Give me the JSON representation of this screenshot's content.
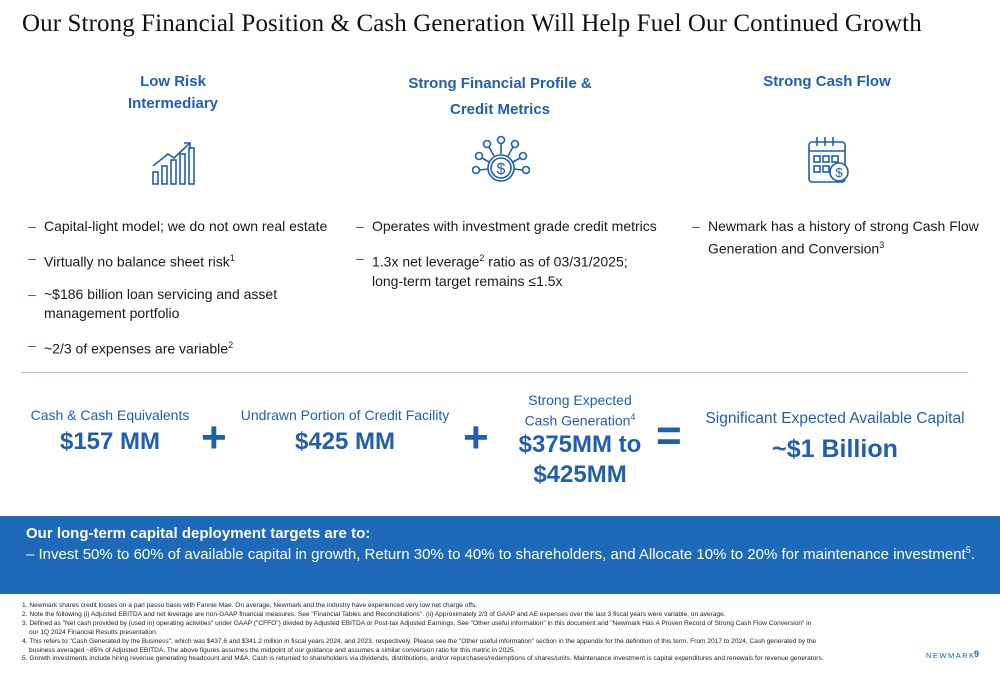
{
  "title": "Our Strong Financial Position & Cash Generation Will Help Fuel Our Continued Growth",
  "columns": [
    {
      "heading_line1": "Low Risk",
      "heading_line2": "Intermediary",
      "icon": "bar-chart-growth-icon",
      "bullets": [
        {
          "text": "Capital-light model; we do not own real estate",
          "sup": ""
        },
        {
          "text": "Virtually no balance sheet risk",
          "sup": "1"
        },
        {
          "text": "~$186 billion loan servicing and asset management portfolio",
          "sup": ""
        },
        {
          "text": "~2/3 of expenses are variable",
          "sup": "2"
        }
      ]
    },
    {
      "heading_line1": "Strong Financial Profile &",
      "heading_line2": "Credit Metrics",
      "icon": "dollar-coin-icon",
      "bullets": [
        {
          "text": "Operates with investment grade credit metrics"
        },
        {
          "pre": "1.3x net leverage",
          "sup": "2",
          "post": " ratio as of 03/31/2025;",
          "line2": "long-term target remains ≤1.5x"
        }
      ]
    },
    {
      "heading_line1": "Strong Cash Flow",
      "icon": "calendar-dollar-icon",
      "bullets": [
        {
          "line1": "Newmark has a history of strong Cash Flow",
          "line2": "Generation and Conversion",
          "sup": "3"
        }
      ]
    }
  ],
  "capital": {
    "cash_label": "Cash & Cash Equivalents",
    "cash_value": "$157 MM",
    "plus": "+",
    "credit_label": "Undrawn Portion of Credit Facility",
    "credit_value": "$425 MM",
    "gen_label_line1": "Strong Expected",
    "gen_label_line2": "Cash Generation",
    "gen_label_sup": "4",
    "gen_value_line1": "$375MM to",
    "gen_value_line2": "$425MM",
    "equals": "=",
    "total_label": "Significant Expected Available Capital",
    "total_value": "~$1 Billion"
  },
  "band": {
    "title": "Our long-term capital deployment targets are to:",
    "text": "– Invest 50% to 60% of available capital in growth, Return 30% to 40% to shareholders, and Allocate 10% to 20% for maintenance investment",
    "sup": "5",
    "end": "."
  },
  "footnotes": [
    "1. Newmark shares credit losses on a pari passu basis with Fannie Mae. On average, Newmark and the industry have experienced very low net charge offs.",
    "2. Note the following (i) Adjusted EBITDA and net leverage are non-GAAP financial measures. See \"Financial Tables and Reconciliations\". (ii) Approximately 2/3 of GAAP and AE expenses over the last 3 fiscal years were variable, on average.",
    "3. Defined as \"Net cash provided by (used in) operating activities\" under GAAP (\"CFFO\") divided by Adjusted EBITDA or Post-tax Adjusted Earnings. See \"Other useful information\" in this document and \"Newmark Has A Proven Record of Strong Cash Flow Conversion\" in",
    "our 1Q 2024 Financial Results presentation.",
    "4. This refers to \"Cash Generated by the Business\", which was $437.6 and $341.2 million in fiscal years 2024, and 2023, respectively. Please see the \"Other useful information\" section in the appendix for the definition of this term. From 2017 to 2024, Cash generated by the",
    "business averaged ~85% of Adjusted EBITDA. The above figures assumes the midpoint of our guidance and assumes a similar conversion ratio for this metric in 2025.",
    "5. Growth investments include hiring revenue generating headcount and M&A. Cash is returned to shareholders via dividends, distributions, and/or repurchases/redemptions of shares/units. Maintenance investment is capital expenditures and renewals for revenue generators."
  ],
  "footer": {
    "brand": "NEWMARK",
    "page": "9"
  },
  "colors": {
    "accent": "#1f5fad",
    "band": "#1e69b8"
  }
}
